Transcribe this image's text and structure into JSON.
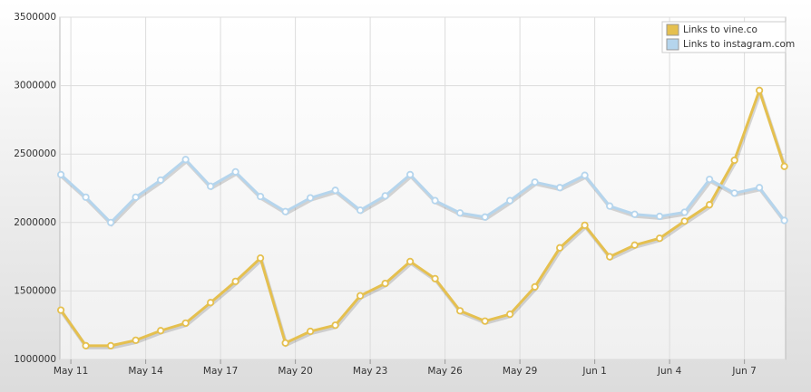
{
  "chart_data": {
    "type": "line",
    "x": [
      10.6,
      11.6,
      12.6,
      13.6,
      14.6,
      15.6,
      16.6,
      17.6,
      18.6,
      19.6,
      20.6,
      21.6,
      22.6,
      23.6,
      24.6,
      25.6,
      26.6,
      27.6,
      28.6,
      29.6,
      30.6,
      31.6,
      32.6,
      33.6,
      34.6,
      35.6,
      36.6,
      37.6,
      38.6,
      39.6
    ],
    "series": [
      {
        "name": "Links to vine.co",
        "color": "#e5c04f",
        "values": [
          1360000,
          1100000,
          1100000,
          1140000,
          1210000,
          1265000,
          1415000,
          1570000,
          1740000,
          1120000,
          1205000,
          1250000,
          1465000,
          1555000,
          1715000,
          1590000,
          1355000,
          1280000,
          1330000,
          1530000,
          1815000,
          1980000,
          1750000,
          1835000,
          1885000,
          2010000,
          2130000,
          2455000,
          2965000,
          2410000
        ]
      },
      {
        "name": "Links to instagram.com",
        "color": "#b5d5ed",
        "values": [
          2350000,
          2185000,
          2000000,
          2185000,
          2310000,
          2460000,
          2265000,
          2370000,
          2190000,
          2080000,
          2180000,
          2235000,
          2090000,
          2195000,
          2350000,
          2160000,
          2070000,
          2040000,
          2160000,
          2295000,
          2255000,
          2345000,
          2120000,
          2060000,
          2045000,
          2075000,
          2315000,
          2215000,
          2255000,
          2015000
        ]
      }
    ],
    "xlim": [
      10.56,
      39.65
    ],
    "xticks": [
      {
        "value": 11,
        "label": "May 11"
      },
      {
        "value": 14,
        "label": "May 14"
      },
      {
        "value": 17,
        "label": "May 17"
      },
      {
        "value": 20,
        "label": "May 20"
      },
      {
        "value": 23,
        "label": "May 23"
      },
      {
        "value": 26,
        "label": "May 26"
      },
      {
        "value": 29,
        "label": "May 29"
      },
      {
        "value": 32,
        "label": "Jun 1"
      },
      {
        "value": 35,
        "label": "Jun 4"
      },
      {
        "value": 38,
        "label": "Jun 7"
      }
    ],
    "ylim": [
      1000000,
      3500000
    ],
    "yticks": [
      1000000,
      1500000,
      2000000,
      2500000,
      3000000,
      3500000
    ],
    "grid": true,
    "legend": "top-right"
  }
}
